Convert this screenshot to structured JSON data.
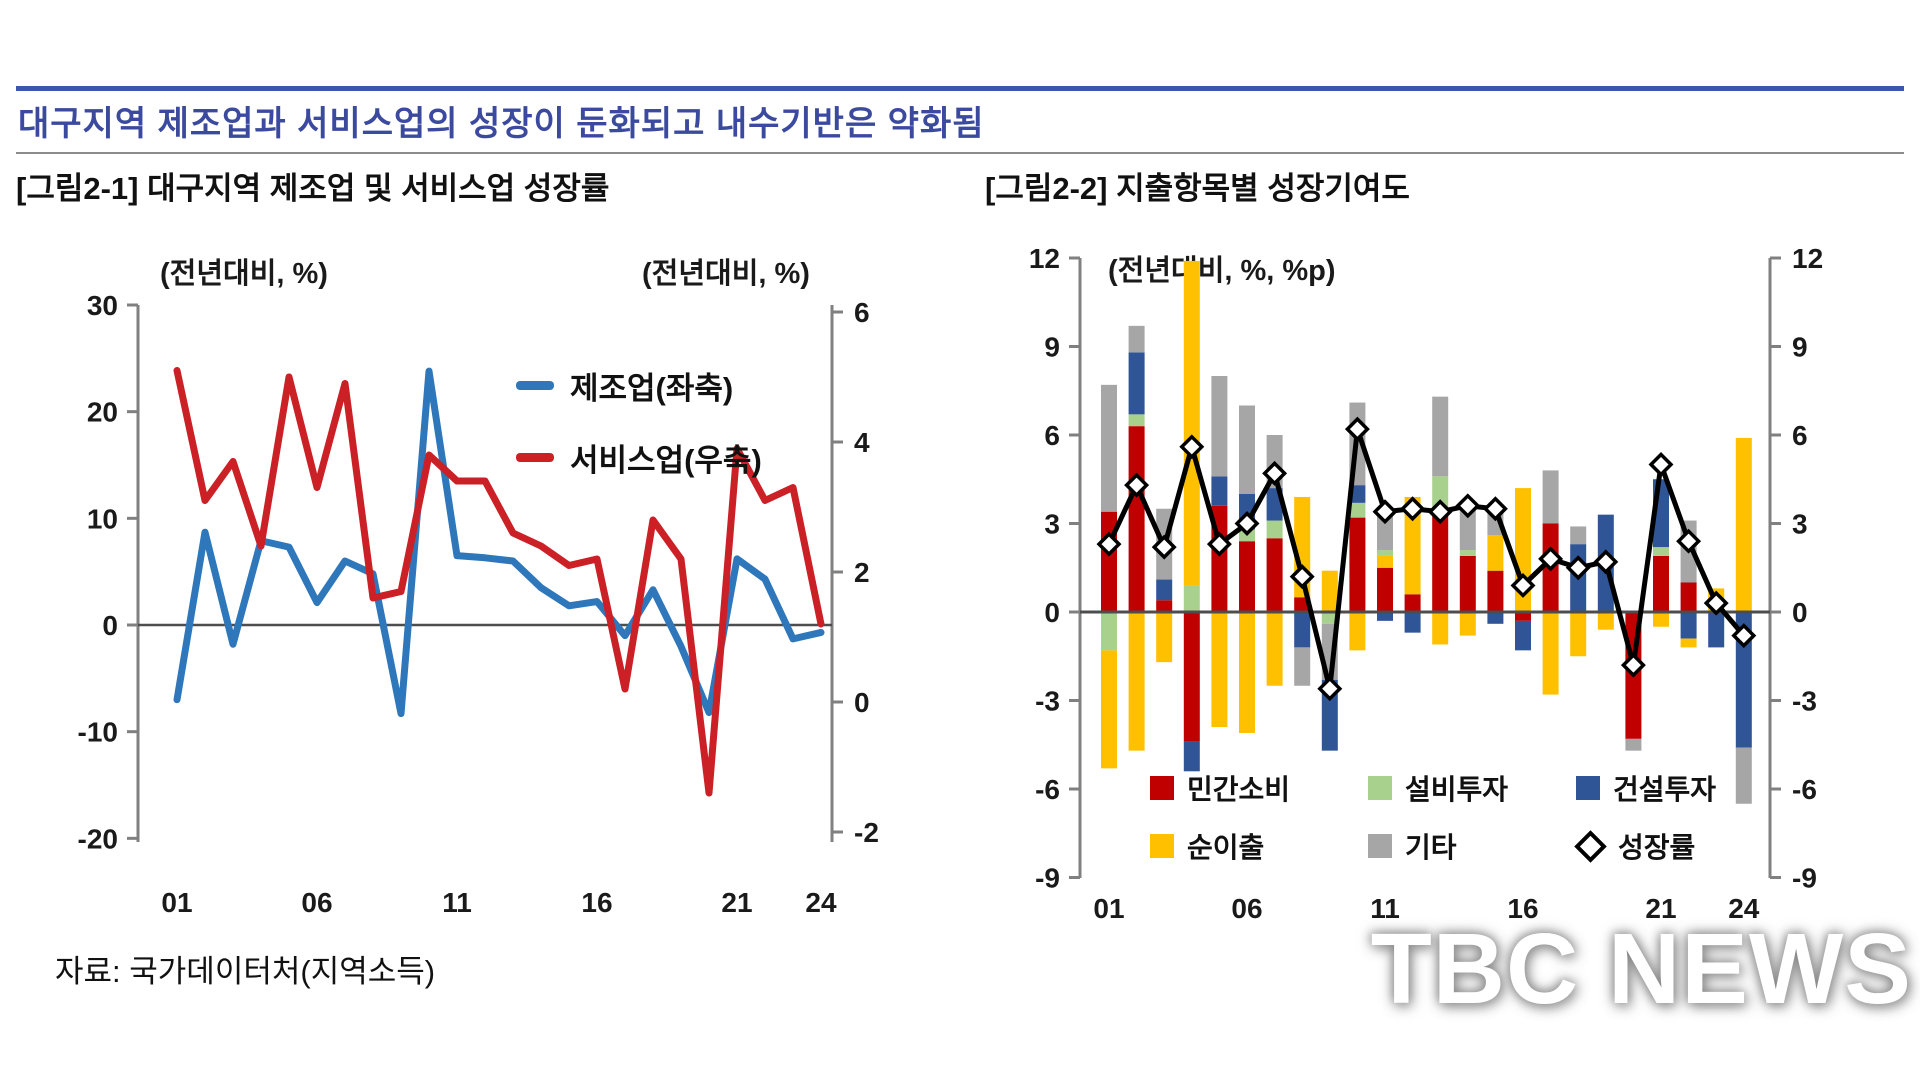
{
  "page": {
    "title": "대구지역 제조업과 서비스업의 성장이 둔화되고 내수기반은 약화됨",
    "title_color": "#3b4a9f",
    "rule_color": "#3a56b2",
    "source": "자료: 국가데이터처(지역소득)",
    "watermark": "TBC NEWS"
  },
  "fig1": {
    "caption": "[그림2-1] 대구지역 제조업 및 서비스업 성장률",
    "unit_left": "(전년대비, %)",
    "unit_right": "(전년대비, %)"
  },
  "fig2": {
    "caption": "[그림2-2] 지출항목별 성장기여도",
    "unit": "(전년대비, %, %p)"
  },
  "chart_data": [
    {
      "type": "line",
      "title": "대구지역 제조업 및 서비스업 성장률",
      "xlabel": "",
      "ylabel_left": "(전년대비, %)",
      "ylabel_right": "(전년대비, %)",
      "categories": [
        "01",
        "02",
        "03",
        "04",
        "05",
        "06",
        "07",
        "08",
        "09",
        "10",
        "11",
        "12",
        "13",
        "14",
        "15",
        "16",
        "17",
        "18",
        "19",
        "20",
        "21",
        "22",
        "23",
        "24"
      ],
      "x_tick_labels": [
        "01",
        "06",
        "11",
        "16",
        "21",
        "24"
      ],
      "left_axis": {
        "ticks": [
          30,
          20,
          10,
          0,
          -10,
          -20
        ],
        "ylim": [
          -20,
          30
        ]
      },
      "right_axis": {
        "ticks": [
          6,
          4,
          2,
          0,
          -2
        ],
        "ylim": [
          -2.1,
          6.1
        ]
      },
      "series": [
        {
          "name": "제조업(좌축)",
          "axis": "left",
          "color": "#2e77bb",
          "values": [
            -7,
            8.7,
            -1.8,
            7.9,
            7.3,
            2.1,
            6,
            4.8,
            -8.3,
            23.8,
            6.5,
            6.3,
            6,
            3.5,
            1.8,
            2.2,
            -1,
            3.3,
            -2,
            -8.2,
            6.2,
            4.3,
            -1.3,
            -0.7
          ]
        },
        {
          "name": "서비스업(우축)",
          "axis": "right",
          "color": "#cb2026",
          "values": [
            5.1,
            3.1,
            3.7,
            2.4,
            5,
            3.3,
            4.9,
            1.6,
            1.7,
            3.8,
            3.4,
            3.4,
            2.6,
            2.4,
            2.1,
            2.2,
            0.2,
            2.8,
            2.2,
            -1.4,
            3.9,
            3.1,
            3.3,
            1.2
          ]
        }
      ]
    },
    {
      "type": "bar",
      "stacked": true,
      "title": "지출항목별 성장기여도",
      "ylabel": "(전년대비, %, %p)",
      "categories": [
        "01",
        "02",
        "03",
        "04",
        "05",
        "06",
        "07",
        "08",
        "09",
        "10",
        "11",
        "12",
        "13",
        "14",
        "15",
        "16",
        "17",
        "18",
        "19",
        "20",
        "21",
        "22",
        "23",
        "24"
      ],
      "x_tick_labels": [
        "01",
        "06",
        "11",
        "16",
        "21",
        "24"
      ],
      "yticks": [
        12,
        9,
        6,
        3,
        0,
        -3,
        -6,
        -9
      ],
      "ylim": [
        -9,
        12
      ],
      "components": [
        {
          "key": "consumption",
          "label": "민간소비",
          "color": "#c00000"
        },
        {
          "key": "net_exports",
          "label": "순이출",
          "color": "#ffc000"
        },
        {
          "key": "equipment",
          "label": "설비투자",
          "color": "#a9d18e"
        },
        {
          "key": "other",
          "label": "기타",
          "color": "#a6a6a6"
        },
        {
          "key": "construction",
          "label": "건설투자",
          "color": "#2f5597"
        }
      ],
      "bars": [
        {
          "year": "01",
          "segments": [
            [
              "consumption",
              3.4
            ],
            [
              "other",
              4.3
            ],
            [
              "equipment",
              -1.3
            ],
            [
              "net_exports",
              -4
            ]
          ]
        },
        {
          "year": "02",
          "segments": [
            [
              "consumption",
              6.3
            ],
            [
              "equipment",
              0.4
            ],
            [
              "construction",
              2.1
            ],
            [
              "other",
              0.9
            ],
            [
              "net_exports",
              -4.7
            ]
          ]
        },
        {
          "year": "03",
          "segments": [
            [
              "consumption",
              0.4
            ],
            [
              "construction",
              0.7
            ],
            [
              "other",
              2.4
            ],
            [
              "net_exports",
              -1.7
            ]
          ]
        },
        {
          "year": "04",
          "segments": [
            [
              "equipment",
              0.9
            ],
            [
              "net_exports",
              11
            ],
            [
              "consumption",
              -4.4
            ],
            [
              "construction",
              -1
            ]
          ]
        },
        {
          "year": "05",
          "segments": [
            [
              "consumption",
              3.6
            ],
            [
              "construction",
              1
            ],
            [
              "other",
              3.4
            ],
            [
              "net_exports",
              -3.9
            ]
          ]
        },
        {
          "year": "06",
          "segments": [
            [
              "consumption",
              2.4
            ],
            [
              "equipment",
              0.4
            ],
            [
              "construction",
              1.2
            ],
            [
              "other",
              3
            ],
            [
              "net_exports",
              -4.1
            ]
          ]
        },
        {
          "year": "07",
          "segments": [
            [
              "consumption",
              2.5
            ],
            [
              "equipment",
              0.6
            ],
            [
              "construction",
              1.1
            ],
            [
              "other",
              1.8
            ],
            [
              "net_exports",
              -2.5
            ]
          ]
        },
        {
          "year": "08",
          "segments": [
            [
              "consumption",
              0.5
            ],
            [
              "net_exports",
              3.4
            ],
            [
              "construction",
              -1.2
            ],
            [
              "other",
              -1.3
            ]
          ]
        },
        {
          "year": "09",
          "segments": [
            [
              "net_exports",
              1.4
            ],
            [
              "equipment",
              -0.4
            ],
            [
              "other",
              -1.9
            ],
            [
              "construction",
              -2.4
            ]
          ]
        },
        {
          "year": "10",
          "segments": [
            [
              "consumption",
              3.2
            ],
            [
              "equipment",
              0.5
            ],
            [
              "construction",
              0.6
            ],
            [
              "other",
              2.8
            ],
            [
              "net_exports",
              -1.3
            ]
          ]
        },
        {
          "year": "11",
          "segments": [
            [
              "consumption",
              1.5
            ],
            [
              "net_exports",
              0.4
            ],
            [
              "equipment",
              0.2
            ],
            [
              "other",
              1.4
            ],
            [
              "construction",
              -0.3
            ]
          ]
        },
        {
          "year": "12",
          "segments": [
            [
              "consumption",
              0.6
            ],
            [
              "net_exports",
              3.3
            ],
            [
              "construction",
              -0.7
            ]
          ]
        },
        {
          "year": "13",
          "segments": [
            [
              "consumption",
              3.5
            ],
            [
              "equipment",
              1.1
            ],
            [
              "other",
              2.7
            ],
            [
              "net_exports",
              -1.1
            ]
          ]
        },
        {
          "year": "14",
          "segments": [
            [
              "consumption",
              1.9
            ],
            [
              "equipment",
              0.2
            ],
            [
              "other",
              1.5
            ],
            [
              "net_exports",
              -0.8
            ]
          ]
        },
        {
          "year": "15",
          "segments": [
            [
              "consumption",
              1.4
            ],
            [
              "net_exports",
              1.2
            ],
            [
              "other",
              0.9
            ],
            [
              "construction",
              -0.4
            ]
          ]
        },
        {
          "year": "16",
          "segments": [
            [
              "net_exports",
              4.2
            ],
            [
              "consumption",
              -0.3
            ],
            [
              "construction",
              -1
            ]
          ]
        },
        {
          "year": "17",
          "segments": [
            [
              "consumption",
              3
            ],
            [
              "other",
              1.8
            ],
            [
              "net_exports",
              -2.8
            ]
          ]
        },
        {
          "year": "18",
          "segments": [
            [
              "construction",
              2.3
            ],
            [
              "other",
              0.6
            ],
            [
              "net_exports",
              -1.5
            ]
          ]
        },
        {
          "year": "19",
          "segments": [
            [
              "construction",
              3.3
            ],
            [
              "net_exports",
              -0.6
            ]
          ]
        },
        {
          "year": "20",
          "segments": [
            [
              "consumption",
              -4.3
            ],
            [
              "other",
              -0.4
            ]
          ]
        },
        {
          "year": "21",
          "segments": [
            [
              "consumption",
              1.9
            ],
            [
              "equipment",
              0.3
            ],
            [
              "construction",
              2.3
            ],
            [
              "net_exports",
              -0.5
            ]
          ]
        },
        {
          "year": "22",
          "segments": [
            [
              "consumption",
              1
            ],
            [
              "other",
              2.1
            ],
            [
              "construction",
              -0.9
            ],
            [
              "net_exports",
              -0.3
            ]
          ]
        },
        {
          "year": "23",
          "segments": [
            [
              "net_exports",
              0.8
            ],
            [
              "construction",
              -1.2
            ]
          ]
        },
        {
          "year": "24",
          "segments": [
            [
              "net_exports",
              5.9
            ],
            [
              "construction",
              -4.6
            ],
            [
              "other",
              -1.9
            ]
          ]
        }
      ],
      "growth_line": {
        "label": "성장률",
        "values": [
          2.3,
          4.3,
          2.2,
          5.6,
          2.3,
          3,
          4.7,
          1.2,
          -2.6,
          6.2,
          3.4,
          3.5,
          3.4,
          3.6,
          3.5,
          0.9,
          1.8,
          1.5,
          1.7,
          -1.8,
          5,
          2.4,
          0.3,
          -0.8
        ]
      }
    }
  ]
}
